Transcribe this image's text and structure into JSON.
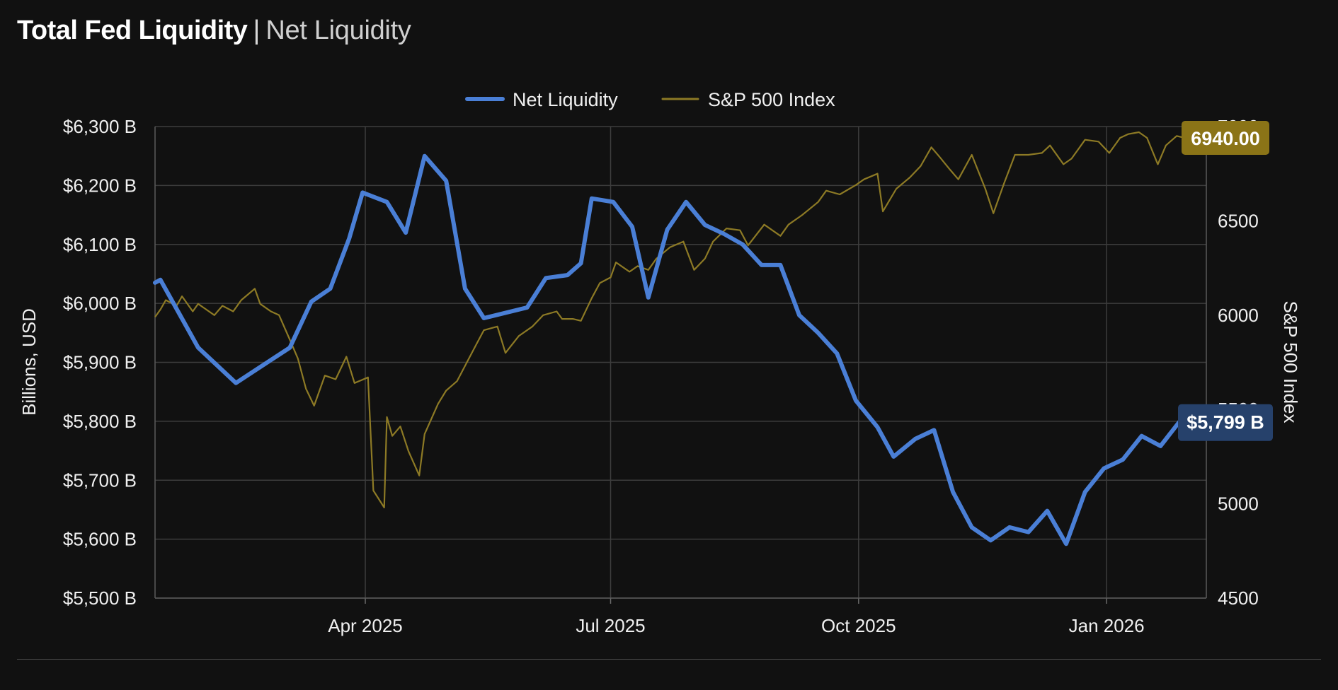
{
  "header": {
    "title": "Total Fed Liquidity",
    "separator": "|",
    "subtitle": "Net Liquidity"
  },
  "colors": {
    "background": "#111111",
    "grid": "#3d3d3d",
    "net_liquidity": "#4a7fd6",
    "sp500": "#8d7a25",
    "net_badge_bg": "#26416b",
    "sp_badge_bg": "#8b7417"
  },
  "chart_data": {
    "type": "line",
    "title": "",
    "ylabel": "Billions, USD",
    "y2label": "S&P 500 Index",
    "legend_position": "top-center",
    "grid": true,
    "xlim": [
      "2025-01-13",
      "2026-02-07"
    ],
    "ylim": [
      5500,
      6300
    ],
    "y2lim": [
      4500,
      7000
    ],
    "x_ticks": [
      {
        "date": "2025-04-01",
        "label": "Apr 2025"
      },
      {
        "date": "2025-07-01",
        "label": "Jul 2025"
      },
      {
        "date": "2025-10-01",
        "label": "Oct 2025"
      },
      {
        "date": "2026-01-01",
        "label": "Jan 2026"
      }
    ],
    "y_ticks": [
      {
        "value": 6300,
        "label": "$6,300 B"
      },
      {
        "value": 6200,
        "label": "$6,200 B"
      },
      {
        "value": 6100,
        "label": "$6,100 B"
      },
      {
        "value": 6000,
        "label": "$6,000 B"
      },
      {
        "value": 5900,
        "label": "$5,900 B"
      },
      {
        "value": 5800,
        "label": "$5,800 B"
      },
      {
        "value": 5700,
        "label": "$5,700 B"
      },
      {
        "value": 5600,
        "label": "$5,600 B"
      },
      {
        "value": 5500,
        "label": "$5,500 B"
      }
    ],
    "y2_ticks": [
      {
        "value": 7000,
        "label": "7000"
      },
      {
        "value": 6500,
        "label": "6500"
      },
      {
        "value": 6000,
        "label": "6000"
      },
      {
        "value": 5500,
        "label": "5500"
      },
      {
        "value": 5000,
        "label": "5000"
      },
      {
        "value": 4500,
        "label": "4500"
      }
    ],
    "series": [
      {
        "name": "Net Liquidity",
        "axis": "left",
        "last_label": "$5,799 B",
        "points": [
          [
            "2025-01-13",
            6035
          ],
          [
            "2025-01-15",
            6040
          ],
          [
            "2025-01-29",
            5925
          ],
          [
            "2025-02-12",
            5865
          ],
          [
            "2025-03-04",
            5925
          ],
          [
            "2025-03-12",
            6003
          ],
          [
            "2025-03-19",
            6025
          ],
          [
            "2025-03-26",
            6110
          ],
          [
            "2025-03-31",
            6188
          ],
          [
            "2025-04-09",
            6172
          ],
          [
            "2025-04-16",
            6120
          ],
          [
            "2025-04-23",
            6250
          ],
          [
            "2025-05-01",
            6208
          ],
          [
            "2025-05-08",
            6025
          ],
          [
            "2025-05-15",
            5975
          ],
          [
            "2025-05-31",
            5993
          ],
          [
            "2025-06-07",
            6043
          ],
          [
            "2025-06-15",
            6048
          ],
          [
            "2025-06-20",
            6068
          ],
          [
            "2025-06-24",
            6178
          ],
          [
            "2025-07-02",
            6172
          ],
          [
            "2025-07-09",
            6130
          ],
          [
            "2025-07-15",
            6010
          ],
          [
            "2025-07-22",
            6125
          ],
          [
            "2025-07-29",
            6172
          ],
          [
            "2025-08-05",
            6133
          ],
          [
            "2025-08-12",
            6118
          ],
          [
            "2025-08-19",
            6100
          ],
          [
            "2025-08-26",
            6065
          ],
          [
            "2025-09-02",
            6065
          ],
          [
            "2025-09-09",
            5980
          ],
          [
            "2025-09-16",
            5950
          ],
          [
            "2025-09-23",
            5915
          ],
          [
            "2025-09-30",
            5835
          ],
          [
            "2025-10-08",
            5790
          ],
          [
            "2025-10-14",
            5740
          ],
          [
            "2025-10-22",
            5770
          ],
          [
            "2025-10-29",
            5785
          ],
          [
            "2025-11-05",
            5680
          ],
          [
            "2025-11-12",
            5620
          ],
          [
            "2025-11-19",
            5598
          ],
          [
            "2025-11-26",
            5620
          ],
          [
            "2025-12-03",
            5612
          ],
          [
            "2025-12-10",
            5648
          ],
          [
            "2025-12-17",
            5592
          ],
          [
            "2025-12-24",
            5680
          ],
          [
            "2025-12-31",
            5720
          ],
          [
            "2026-01-07",
            5735
          ],
          [
            "2026-01-14",
            5775
          ],
          [
            "2026-01-21",
            5758
          ],
          [
            "2026-01-28",
            5799
          ]
        ]
      },
      {
        "name": "S&P 500 Index",
        "axis": "right",
        "last_label": "6940.00",
        "points": [
          [
            "2025-01-13",
            5990
          ],
          [
            "2025-01-15",
            6030
          ],
          [
            "2025-01-17",
            6080
          ],
          [
            "2025-01-21",
            6050
          ],
          [
            "2025-01-23",
            6100
          ],
          [
            "2025-01-27",
            6020
          ],
          [
            "2025-01-29",
            6060
          ],
          [
            "2025-01-31",
            6040
          ],
          [
            "2025-02-04",
            6000
          ],
          [
            "2025-02-07",
            6050
          ],
          [
            "2025-02-11",
            6020
          ],
          [
            "2025-02-14",
            6080
          ],
          [
            "2025-02-19",
            6140
          ],
          [
            "2025-02-21",
            6060
          ],
          [
            "2025-02-25",
            6020
          ],
          [
            "2025-02-28",
            6000
          ],
          [
            "2025-03-04",
            5870
          ],
          [
            "2025-03-07",
            5770
          ],
          [
            "2025-03-10",
            5610
          ],
          [
            "2025-03-13",
            5520
          ],
          [
            "2025-03-17",
            5680
          ],
          [
            "2025-03-21",
            5660
          ],
          [
            "2025-03-25",
            5780
          ],
          [
            "2025-03-28",
            5640
          ],
          [
            "2025-04-02",
            5670
          ],
          [
            "2025-04-04",
            5070
          ],
          [
            "2025-04-08",
            4980
          ],
          [
            "2025-04-09",
            5460
          ],
          [
            "2025-04-11",
            5360
          ],
          [
            "2025-04-14",
            5410
          ],
          [
            "2025-04-17",
            5280
          ],
          [
            "2025-04-21",
            5150
          ],
          [
            "2025-04-23",
            5370
          ],
          [
            "2025-04-28",
            5530
          ],
          [
            "2025-05-01",
            5600
          ],
          [
            "2025-05-05",
            5650
          ],
          [
            "2025-05-12",
            5840
          ],
          [
            "2025-05-15",
            5920
          ],
          [
            "2025-05-20",
            5940
          ],
          [
            "2025-05-23",
            5800
          ],
          [
            "2025-05-28",
            5890
          ],
          [
            "2025-06-02",
            5940
          ],
          [
            "2025-06-06",
            6000
          ],
          [
            "2025-06-11",
            6020
          ],
          [
            "2025-06-13",
            5980
          ],
          [
            "2025-06-17",
            5980
          ],
          [
            "2025-06-20",
            5970
          ],
          [
            "2025-06-24",
            6090
          ],
          [
            "2025-06-27",
            6170
          ],
          [
            "2025-07-01",
            6200
          ],
          [
            "2025-07-03",
            6280
          ],
          [
            "2025-07-08",
            6230
          ],
          [
            "2025-07-11",
            6260
          ],
          [
            "2025-07-15",
            6240
          ],
          [
            "2025-07-18",
            6300
          ],
          [
            "2025-07-23",
            6360
          ],
          [
            "2025-07-28",
            6390
          ],
          [
            "2025-08-01",
            6240
          ],
          [
            "2025-08-05",
            6300
          ],
          [
            "2025-08-08",
            6390
          ],
          [
            "2025-08-13",
            6460
          ],
          [
            "2025-08-18",
            6450
          ],
          [
            "2025-08-21",
            6370
          ],
          [
            "2025-08-27",
            6480
          ],
          [
            "2025-09-02",
            6420
          ],
          [
            "2025-09-05",
            6480
          ],
          [
            "2025-09-10",
            6530
          ],
          [
            "2025-09-16",
            6600
          ],
          [
            "2025-09-19",
            6660
          ],
          [
            "2025-09-24",
            6640
          ],
          [
            "2025-09-30",
            6690
          ],
          [
            "2025-10-03",
            6720
          ],
          [
            "2025-10-08",
            6750
          ],
          [
            "2025-10-10",
            6550
          ],
          [
            "2025-10-15",
            6670
          ],
          [
            "2025-10-20",
            6730
          ],
          [
            "2025-10-24",
            6790
          ],
          [
            "2025-10-28",
            6890
          ],
          [
            "2025-10-31",
            6840
          ],
          [
            "2025-11-04",
            6770
          ],
          [
            "2025-11-07",
            6720
          ],
          [
            "2025-11-12",
            6850
          ],
          [
            "2025-11-17",
            6670
          ],
          [
            "2025-11-20",
            6540
          ],
          [
            "2025-11-24",
            6700
          ],
          [
            "2025-11-28",
            6850
          ],
          [
            "2025-12-03",
            6850
          ],
          [
            "2025-12-08",
            6860
          ],
          [
            "2025-12-11",
            6900
          ],
          [
            "2025-12-16",
            6800
          ],
          [
            "2025-12-19",
            6830
          ],
          [
            "2025-12-24",
            6930
          ],
          [
            "2025-12-29",
            6920
          ],
          [
            "2026-01-02",
            6860
          ],
          [
            "2026-01-06",
            6940
          ],
          [
            "2026-01-09",
            6960
          ],
          [
            "2026-01-13",
            6970
          ],
          [
            "2026-01-16",
            6940
          ],
          [
            "2026-01-20",
            6800
          ],
          [
            "2026-01-23",
            6900
          ],
          [
            "2026-01-27",
            6950
          ],
          [
            "2026-01-30",
            6940
          ]
        ]
      }
    ]
  }
}
